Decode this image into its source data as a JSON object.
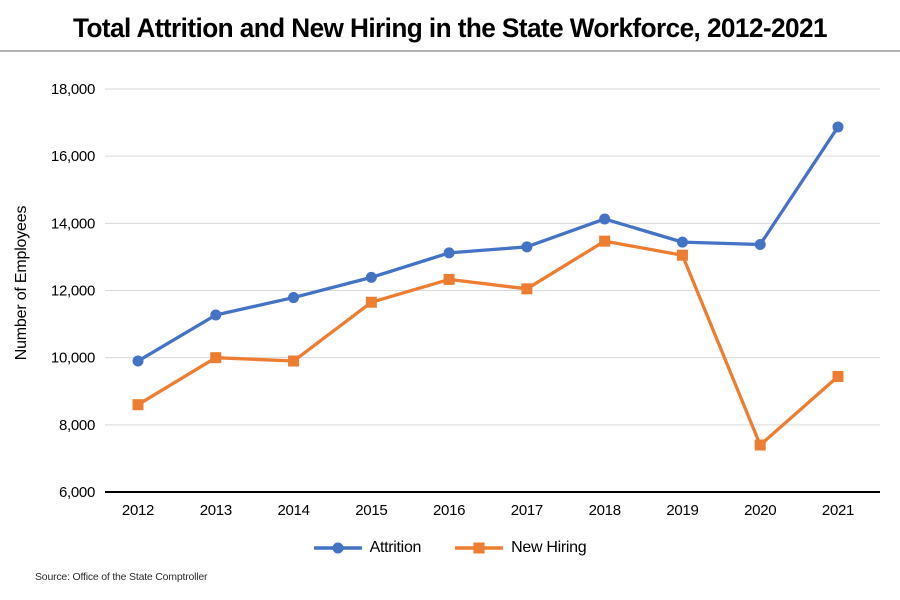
{
  "chart_data": {
    "type": "line",
    "title": "Total Attrition and New Hiring in the State Workforce, 2012-2021",
    "ylabel": "Number of Employees",
    "xlabel": "",
    "source": "Source: Office of the State Comptroller",
    "categories": [
      "2012",
      "2013",
      "2014",
      "2015",
      "2016",
      "2017",
      "2018",
      "2019",
      "2020",
      "2021"
    ],
    "series": [
      {
        "name": "Attrition",
        "marker": "circle",
        "color": "#4472C4",
        "values": [
          9900,
          11270,
          11790,
          12390,
          13120,
          13300,
          14130,
          13440,
          13370,
          16870
        ]
      },
      {
        "name": "New Hiring",
        "marker": "square",
        "color": "#ED7D31",
        "values": [
          8600,
          10000,
          9900,
          11650,
          12330,
          12050,
          13470,
          13050,
          7400,
          9440
        ]
      }
    ],
    "ylim": [
      6000,
      18000
    ],
    "ytick_step": 2000,
    "ytick_labels": [
      "6,000",
      "8,000",
      "10,000",
      "12,000",
      "14,000",
      "16,000",
      "18,000"
    ],
    "grid": "horizontal",
    "grid_color": "#d9d9d9",
    "axis_color": "#000000",
    "legend_position": "bottom"
  }
}
